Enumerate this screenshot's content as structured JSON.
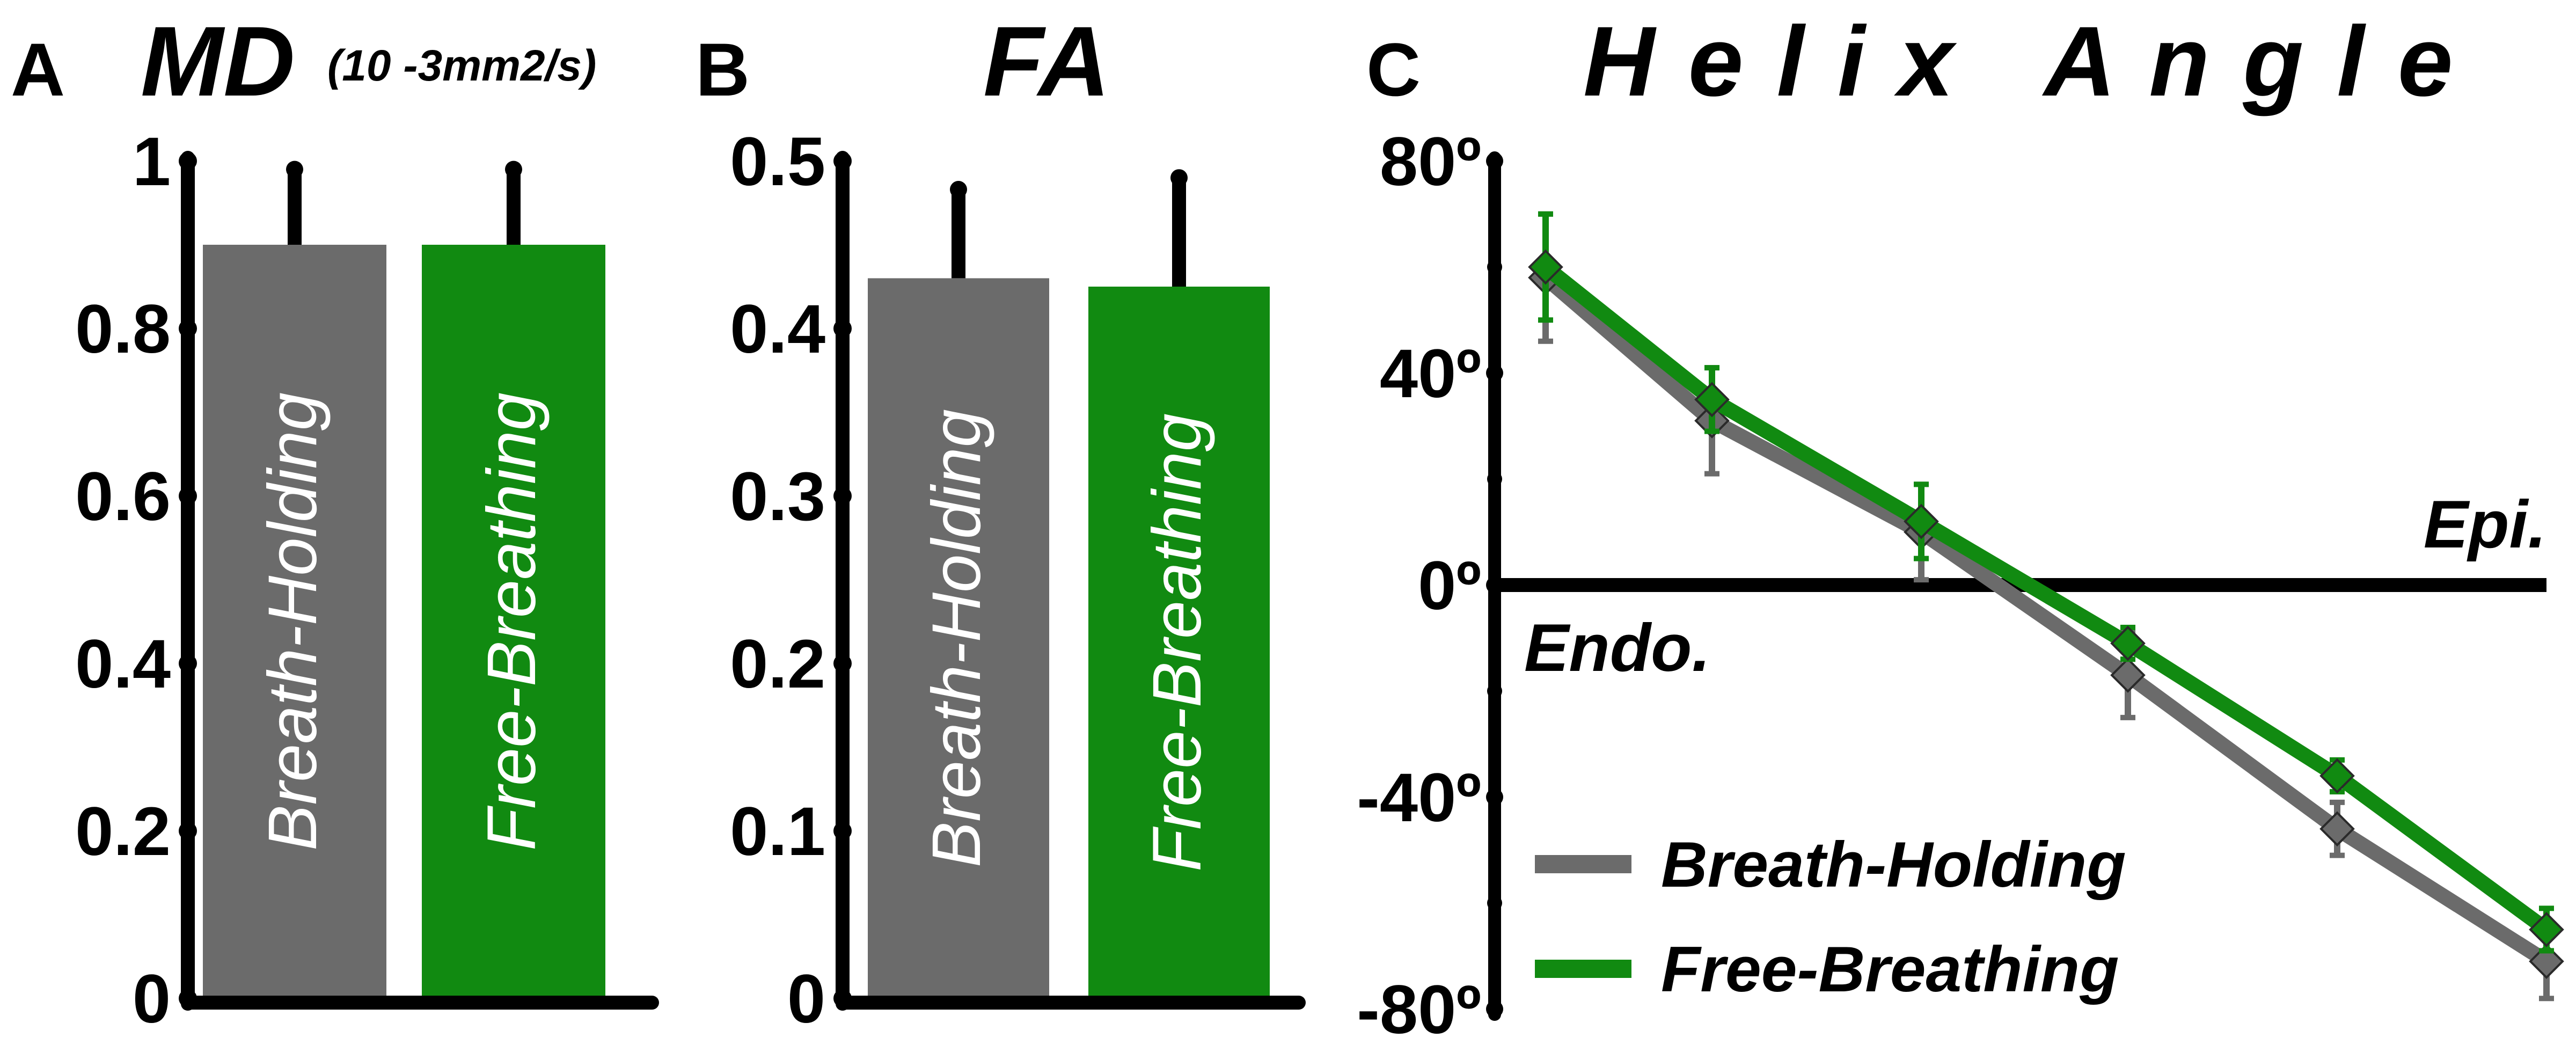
{
  "panels": {
    "a": {
      "letter": "A",
      "title": "MD",
      "title_suffix": "(10 -3mm2/s)"
    },
    "b": {
      "letter": "B",
      "title": "FA"
    },
    "c": {
      "letter": "C",
      "title": "Helix Angle",
      "endo_label": "Endo.",
      "epi_label": "Epi."
    }
  },
  "colors": {
    "breath_holding": "#6b6b6b",
    "free_breathing": "#118a11",
    "axis": "#000000"
  },
  "chart_data": [
    {
      "type": "bar",
      "title": "MD(10 -3mm2/s)",
      "categories": [
        "Breath-Holding",
        "Free-Breathing"
      ],
      "values": [
        0.9,
        0.9
      ],
      "error_upper": [
        0.99,
        0.99
      ],
      "ylim": [
        0,
        1
      ],
      "yticks": [
        0,
        0.2,
        0.4,
        0.6,
        0.8,
        1
      ],
      "ytick_labels": [
        "0",
        "0.2",
        "0.4",
        "0.6",
        "0.8",
        "1"
      ]
    },
    {
      "type": "bar",
      "title": "FA",
      "categories": [
        "Breath-Holding",
        "Free-Breathing"
      ],
      "values": [
        0.43,
        0.425
      ],
      "error_upper": [
        0.483,
        0.49
      ],
      "ylim": [
        0,
        0.5
      ],
      "yticks": [
        0,
        0.1,
        0.2,
        0.3,
        0.4,
        0.5
      ],
      "ytick_labels": [
        "0",
        "0.1",
        "0.2",
        "0.3",
        "0.4",
        "0.5"
      ]
    },
    {
      "type": "line",
      "title": "Helix Angle",
      "ylim": [
        -80,
        80
      ],
      "yticks": [
        -80,
        -40,
        0,
        40,
        80
      ],
      "ytick_labels": [
        "-80º",
        "-40º",
        "0º",
        "40º",
        "80º"
      ],
      "x": [
        0,
        1,
        2,
        3,
        4,
        5
      ],
      "legend": [
        "Breath-Holding",
        "Free-Breathing"
      ],
      "legend_position": "bottom-left",
      "series": [
        {
          "name": "Breath-Holding",
          "values": [
            58,
            31,
            10,
            -17,
            -46,
            -71
          ],
          "errors": [
            12,
            10,
            9,
            8,
            5,
            7
          ]
        },
        {
          "name": "Free-Breathing",
          "values": [
            60,
            35,
            12,
            -11,
            -36,
            -65
          ],
          "errors": [
            10,
            6,
            7,
            3,
            3,
            4
          ]
        }
      ]
    }
  ]
}
